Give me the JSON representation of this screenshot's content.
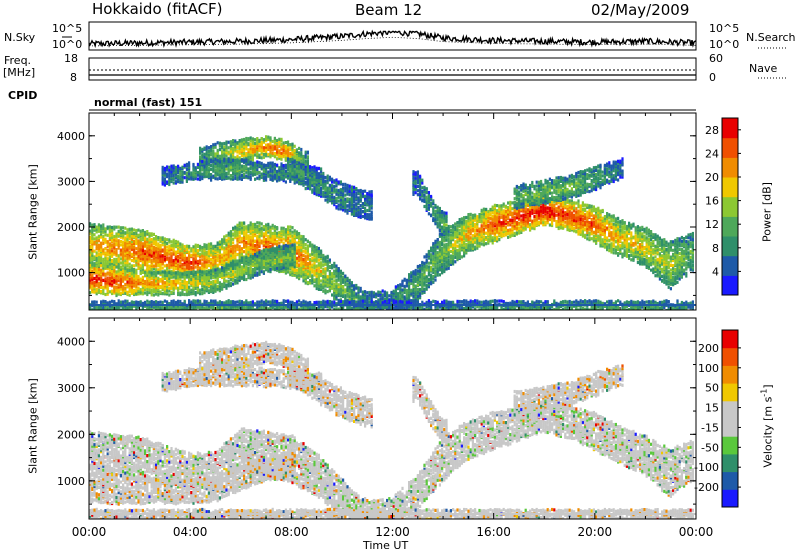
{
  "header": {
    "station": "Hokkaido (fitACF)",
    "beam": "Beam 12",
    "date": "02/May/2009"
  },
  "params_panel": {
    "nsky_label": "N.Sky",
    "nsearch_label": "N.Search",
    "noise_ticks": [
      "10^5",
      "10^0"
    ],
    "freq_label_1": "Freq.",
    "freq_label_2": "[MHz]",
    "freq_ticks": [
      "18",
      "8"
    ],
    "nave_label": "Nave",
    "nave_ticks": [
      "60",
      "0"
    ],
    "cpid_label": "CPID",
    "cpid_value": "normal (fast) 151"
  },
  "x_axis": {
    "label": "Time UT",
    "ticks": [
      "00:00",
      "04:00",
      "08:00",
      "12:00",
      "16:00",
      "20:00",
      "00:00"
    ]
  },
  "colors": {
    "power_scale": [
      "#1a1aff",
      "#1e5aa8",
      "#2f8f6a",
      "#4ea85a",
      "#8cc832",
      "#f0c800",
      "#f08c00",
      "#f05000",
      "#e80000"
    ],
    "velocity_scale": [
      "#1a1aff",
      "#1e5aa8",
      "#2f8f6a",
      "#5ac83c",
      "#c8c8c8",
      "#c8c8c8",
      "#f0c800",
      "#f08c00",
      "#f05000",
      "#e80000"
    ]
  },
  "chart_data": [
    {
      "type": "heatmap",
      "title": "Power",
      "xlabel": "Time UT",
      "ylabel": "Slant Range [km]",
      "xlim_hours": [
        0,
        24
      ],
      "ylim": [
        180,
        4500
      ],
      "y_ticks": [
        1000,
        2000,
        3000,
        4000
      ],
      "colorbar_label": "Power [dB]",
      "colorbar_ticks": [
        4,
        8,
        12,
        16,
        20,
        24,
        28
      ],
      "colorbar_range": [
        0,
        30
      ],
      "echo_bands": [
        {
          "t": [
            0,
            2,
            4,
            5,
            6,
            8,
            9,
            10,
            10.5,
            11,
            12,
            13,
            14,
            15,
            16,
            17,
            18,
            19,
            20,
            21,
            22,
            23,
            24
          ],
          "r": [
            1650,
            1500,
            1250,
            1300,
            1700,
            1500,
            1150,
            700,
            450,
            350,
            400,
            800,
            1500,
            1900,
            2100,
            2250,
            2400,
            2300,
            2100,
            1800,
            1600,
            1200,
            1500
          ],
          "w": [
            450,
            450,
            350,
            350,
            450,
            500,
            450,
            350,
            300,
            250,
            250,
            350,
            450,
            400,
            380,
            350,
            300,
            330,
            380,
            400,
            400,
            500,
            400
          ],
          "p": [
            18,
            22,
            23,
            18,
            20,
            22,
            16,
            12,
            10,
            8,
            8,
            10,
            12,
            18,
            22,
            24,
            26,
            24,
            22,
            18,
            16,
            14,
            10
          ]
        },
        {
          "t": [
            0,
            1,
            2,
            3,
            4,
            5,
            6,
            7,
            8
          ],
          "r": [
            900,
            850,
            800,
            800,
            800,
            850,
            1100,
            1300,
            1400
          ],
          "w": [
            300,
            300,
            250,
            250,
            250,
            250,
            250,
            250,
            250
          ],
          "p": [
            24,
            24,
            20,
            18,
            16,
            14,
            14,
            12,
            12
          ]
        },
        {
          "t": [
            4.5,
            5,
            6,
            7,
            7.5,
            8,
            8.5
          ],
          "r": [
            3600,
            3650,
            3700,
            3800,
            3750,
            3650,
            3500
          ],
          "w": [
            180,
            200,
            250,
            200,
            200,
            200,
            180
          ],
          "p": [
            8,
            12,
            16,
            20,
            22,
            18,
            10
          ]
        },
        {
          "t": [
            3,
            4,
            5,
            6,
            7,
            8,
            9
          ],
          "r": [
            3150,
            3250,
            3300,
            3300,
            3250,
            3200,
            3150
          ],
          "w": [
            180,
            180,
            200,
            200,
            180,
            180,
            180
          ],
          "p": [
            6,
            8,
            10,
            10,
            8,
            8,
            6
          ]
        },
        {
          "t": [
            8,
            9,
            10,
            11
          ],
          "r": [
            3300,
            3000,
            2700,
            2500
          ],
          "w": [
            200,
            250,
            300,
            300
          ],
          "p": [
            10,
            8,
            8,
            6
          ]
        },
        {
          "t": [
            13,
            13.5,
            14
          ],
          "r": [
            3000,
            2500,
            2100
          ],
          "w": [
            250,
            250,
            250
          ],
          "p": [
            6,
            8,
            10
          ]
        },
        {
          "t": [
            17,
            18,
            19,
            20,
            20.5,
            21
          ],
          "r": [
            2700,
            2800,
            2900,
            3100,
            3200,
            3300
          ],
          "w": [
            250,
            250,
            250,
            250,
            200,
            200
          ],
          "p": [
            10,
            12,
            12,
            10,
            8,
            6
          ]
        },
        {
          "t": [
            0,
            4,
            8,
            12,
            16,
            20,
            24
          ],
          "r": [
            250,
            250,
            250,
            250,
            250,
            250,
            250
          ],
          "w": [
            150,
            150,
            150,
            150,
            150,
            150,
            150
          ],
          "p": [
            8,
            10,
            8,
            6,
            8,
            10,
            8
          ]
        }
      ]
    },
    {
      "type": "heatmap",
      "title": "Velocity",
      "xlabel": "Time UT",
      "ylabel": "Slant Range [km]",
      "xlim_hours": [
        0,
        24
      ],
      "ylim": [
        180,
        4500
      ],
      "y_ticks": [
        1000,
        2000,
        3000,
        4000
      ],
      "colorbar_label": "Velocity [m s^-1]",
      "colorbar_ticks": [
        200,
        100,
        50,
        15,
        -15,
        -50,
        -100,
        -200
      ],
      "colorbar_range": [
        -250,
        250
      ]
    }
  ],
  "params_series": {
    "noise_sky": {
      "t": [
        0,
        2,
        4,
        6,
        8,
        10,
        11,
        12,
        13,
        14,
        16,
        18,
        20,
        22,
        24
      ],
      "v": [
        0.25,
        0.3,
        0.35,
        0.4,
        0.5,
        0.7,
        0.85,
        0.95,
        0.85,
        0.6,
        0.45,
        0.4,
        0.35,
        0.4,
        0.3
      ]
    },
    "frequency_mhz": 11.0,
    "nave": 23
  }
}
